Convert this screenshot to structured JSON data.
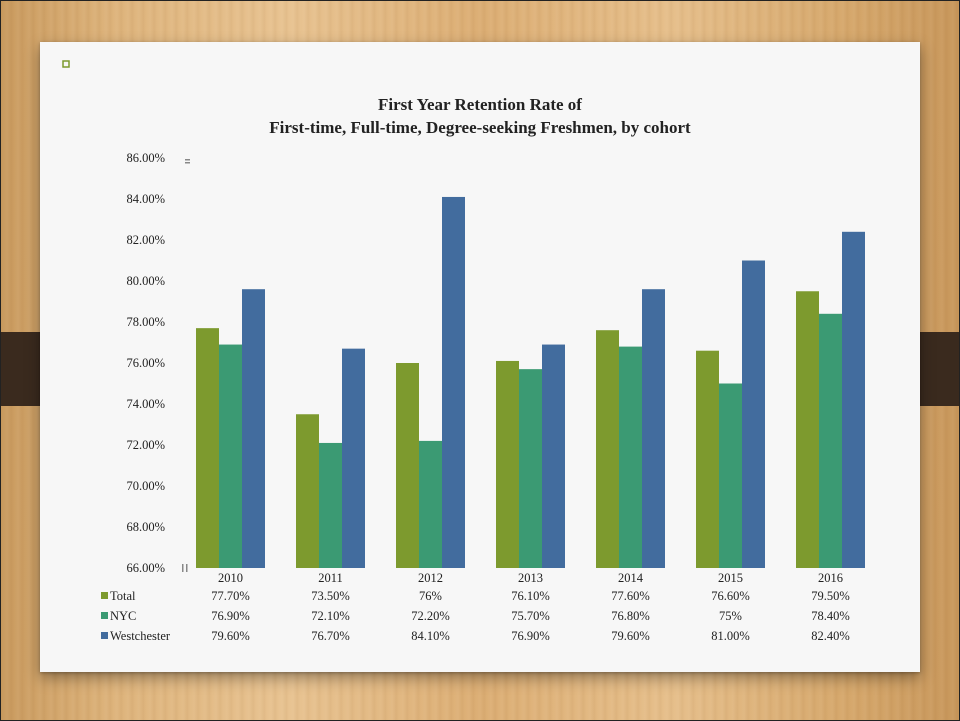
{
  "colors": {
    "total": "#7d9a2e",
    "nyc": "#3b9a73",
    "westchester": "#426c9e"
  },
  "chart_data": {
    "type": "bar",
    "title": "First Year Retention Rate of",
    "subtitle": "First-time, Full-time, Degree-seeking Freshmen, by cohort",
    "categories": [
      "2010",
      "2011",
      "2012",
      "2013",
      "2014",
      "2015",
      "2016"
    ],
    "series": [
      {
        "name": "Total",
        "values": [
          77.7,
          73.5,
          76.0,
          76.1,
          77.6,
          76.6,
          79.5
        ],
        "labels": [
          "77.70%",
          "73.50%",
          "76%",
          "76.10%",
          "77.60%",
          "76.60%",
          "79.50%"
        ]
      },
      {
        "name": "NYC",
        "values": [
          76.9,
          72.1,
          72.2,
          75.7,
          76.8,
          75.0,
          78.4
        ],
        "labels": [
          "76.90%",
          "72.10%",
          "72.20%",
          "75.70%",
          "76.80%",
          "75%",
          "78.40%"
        ]
      },
      {
        "name": "Westchester",
        "values": [
          79.6,
          76.7,
          84.1,
          76.9,
          79.6,
          81.0,
          82.4
        ],
        "labels": [
          "79.60%",
          "76.70%",
          "84.10%",
          "76.90%",
          "79.60%",
          "81.00%",
          "82.40%"
        ]
      }
    ],
    "yticks": [
      "86.00%",
      "84.00%",
      "82.00%",
      "80.00%",
      "78.00%",
      "76.00%",
      "74.00%",
      "72.00%",
      "70.00%",
      "68.00%",
      "66.00%"
    ],
    "ylim": [
      66,
      86
    ],
    "grid": false,
    "legend": "data-table-left"
  }
}
